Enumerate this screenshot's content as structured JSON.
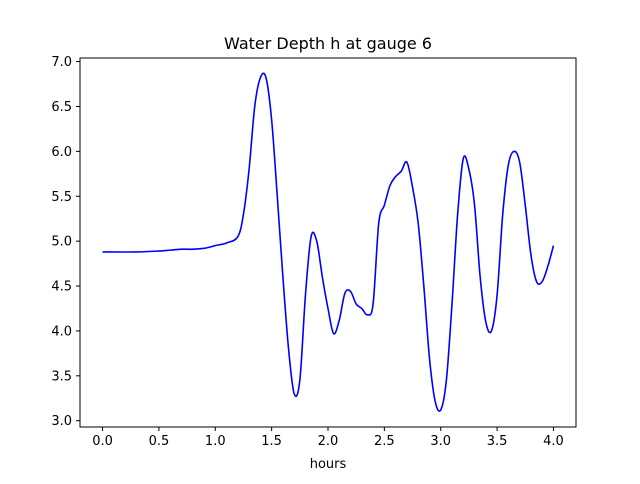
{
  "chart_data": {
    "type": "line",
    "title": "Water Depth h at gauge 6",
    "xlabel": "hours",
    "ylabel": "",
    "xlim": [
      -0.2,
      4.2
    ],
    "ylim": [
      2.93,
      7.04
    ],
    "xticks": [
      0.0,
      0.5,
      1.0,
      1.5,
      2.0,
      2.5,
      3.0,
      3.5,
      4.0
    ],
    "xtick_labels": [
      "0.0",
      "0.5",
      "1.0",
      "1.5",
      "2.0",
      "2.5",
      "3.0",
      "3.5",
      "4.0"
    ],
    "yticks": [
      3.0,
      3.5,
      4.0,
      4.5,
      5.0,
      5.5,
      6.0,
      6.5,
      7.0
    ],
    "ytick_labels": [
      "3.0",
      "3.5",
      "4.0",
      "4.5",
      "5.0",
      "5.5",
      "6.0",
      "6.5",
      "7.0"
    ],
    "grid": false,
    "series": [
      {
        "color": "#0000ff",
        "x": [
          0.0,
          0.3,
          0.5,
          0.6,
          0.7,
          0.8,
          0.9,
          1.0,
          1.1,
          1.2,
          1.25,
          1.3,
          1.35,
          1.4,
          1.45,
          1.5,
          1.55,
          1.6,
          1.65,
          1.7,
          1.75,
          1.8,
          1.85,
          1.9,
          1.95,
          2.0,
          2.05,
          2.1,
          2.15,
          2.2,
          2.25,
          2.3,
          2.35,
          2.4,
          2.45,
          2.5,
          2.55,
          2.6,
          2.65,
          2.7,
          2.75,
          2.8,
          2.85,
          2.9,
          2.95,
          3.0,
          3.05,
          3.1,
          3.15,
          3.2,
          3.25,
          3.3,
          3.35,
          3.4,
          3.45,
          3.5,
          3.55,
          3.6,
          3.65,
          3.7,
          3.75,
          3.8,
          3.85,
          3.9,
          3.95,
          4.0
        ],
        "y": [
          4.88,
          4.88,
          4.89,
          4.9,
          4.91,
          4.91,
          4.92,
          4.95,
          4.98,
          5.05,
          5.3,
          5.8,
          6.5,
          6.82,
          6.82,
          6.35,
          5.5,
          4.6,
          3.8,
          3.3,
          3.45,
          4.4,
          5.05,
          5.0,
          4.6,
          4.25,
          3.97,
          4.12,
          4.42,
          4.44,
          4.3,
          4.25,
          4.18,
          4.3,
          5.2,
          5.4,
          5.62,
          5.72,
          5.78,
          5.88,
          5.6,
          5.2,
          4.5,
          3.7,
          3.22,
          3.12,
          3.45,
          4.3,
          5.3,
          5.92,
          5.8,
          5.4,
          4.6,
          4.1,
          4.0,
          4.4,
          5.3,
          5.85,
          6.0,
          5.88,
          5.4,
          4.85,
          4.55,
          4.55,
          4.72,
          4.95
        ]
      }
    ]
  }
}
